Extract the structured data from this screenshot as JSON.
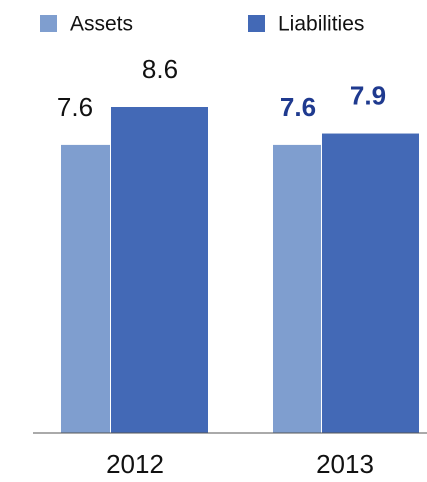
{
  "chart_data": {
    "type": "bar",
    "categories": [
      "2012",
      "2013"
    ],
    "series": [
      {
        "name": "Assets",
        "color": "#7f9ecf",
        "values": [
          7.6,
          7.6
        ]
      },
      {
        "name": "Liabilities",
        "color": "#4369b6",
        "values": [
          8.6,
          7.9
        ]
      }
    ]
  }
}
